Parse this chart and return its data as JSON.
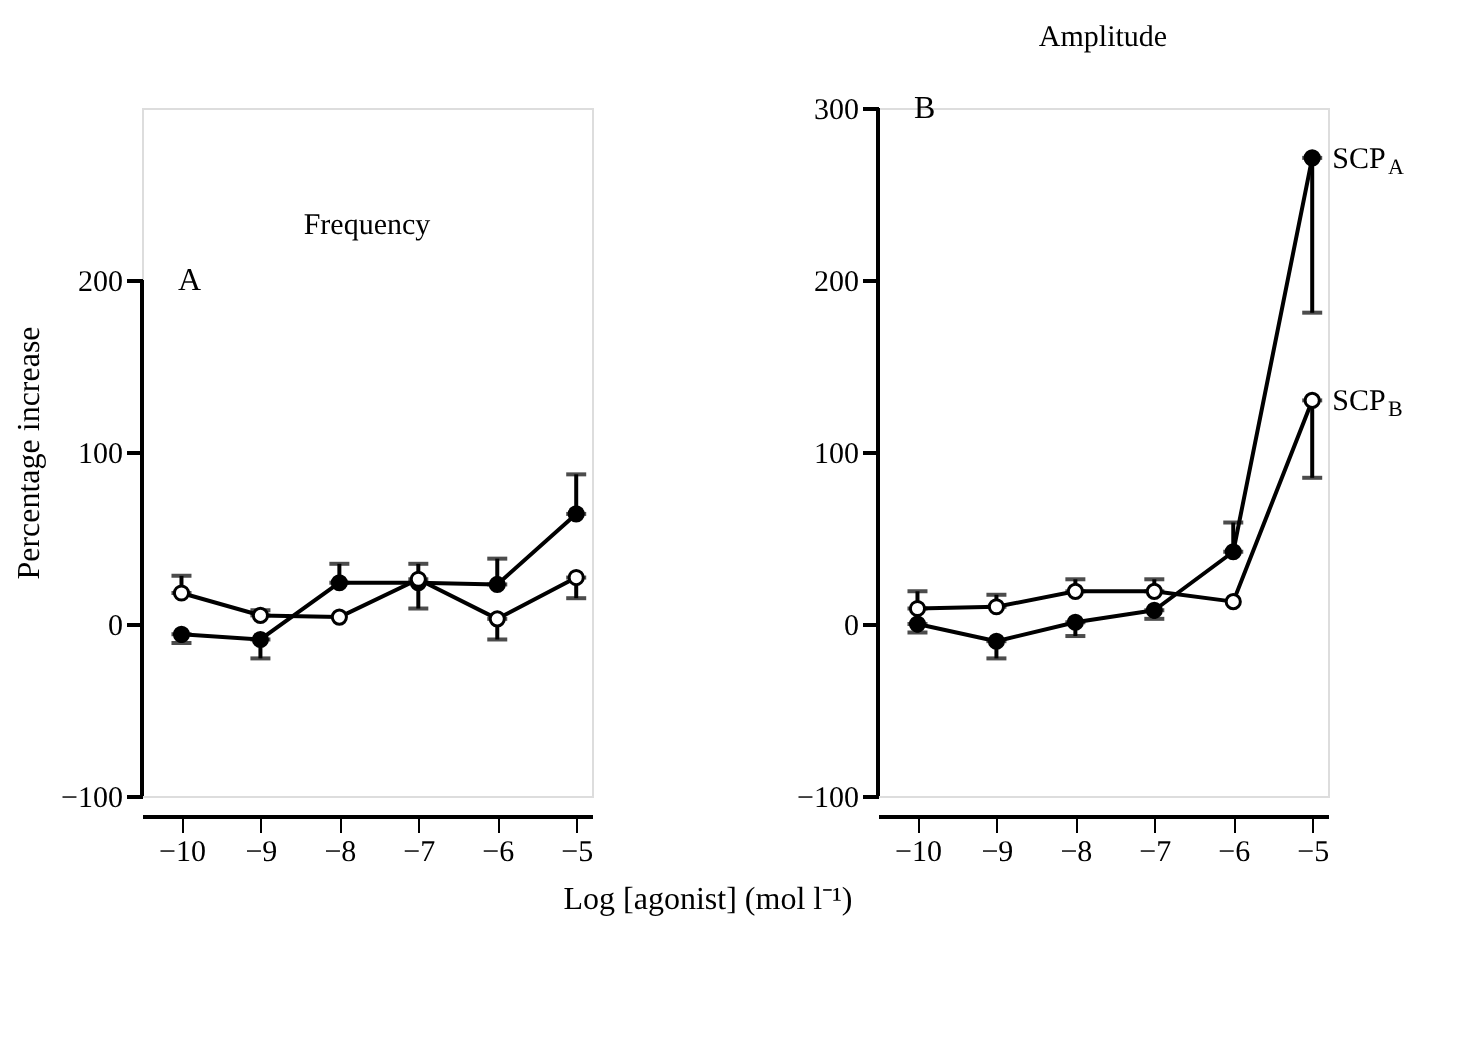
{
  "chart_data": [
    {
      "type": "line",
      "title": "Frequency",
      "ylabel": "Percentage increase",
      "xlabel": "Log [agonist] (mol l⁻¹)",
      "annotations": [
        "A"
      ],
      "x": [
        -10,
        -9,
        -8,
        -7,
        -6,
        -5
      ],
      "xlim": [
        -10.5,
        -4.8
      ],
      "xticks": [
        -10,
        -9,
        -8,
        -7,
        -6,
        -5
      ],
      "ylim": [
        -100,
        200
      ],
      "yticks": [
        -100,
        0,
        100,
        200
      ],
      "marker": "circle",
      "grid": false,
      "legend": false,
      "series": [
        {
          "color": "#000000",
          "values": [
            -6,
            -9,
            24,
            24,
            23,
            64
          ],
          "errors": [
            [
              -11,
              -6
            ],
            [
              -20,
              -9
            ],
            [
              24,
              35
            ],
            [
              24,
              35
            ],
            [
              23,
              38
            ],
            [
              64,
              87
            ]
          ]
        },
        {
          "color": "#000000",
          "values": [
            18,
            5,
            4,
            26,
            3,
            27
          ],
          "errors": [
            [
              18,
              28
            ],
            [
              5,
              8
            ],
            null,
            [
              9,
              26
            ],
            [
              -9,
              3
            ],
            [
              15,
              27
            ]
          ]
        }
      ]
    },
    {
      "type": "line",
      "title": "Amplitude",
      "annotations": [
        "B"
      ],
      "x": [
        -10,
        -9,
        -8,
        -7,
        -6,
        -5
      ],
      "xlim": [
        -10.5,
        -4.8
      ],
      "xticks": [
        -10,
        -9,
        -8,
        -7,
        -6,
        -5
      ],
      "ylim": [
        -100,
        300
      ],
      "yticks": [
        -100,
        0,
        100,
        200,
        300
      ],
      "marker": "circle",
      "grid": false,
      "legend": false,
      "series": [
        {
          "name": "SCP$_{A}$",
          "color": "#000000",
          "values": [
            0,
            -10,
            1,
            8,
            42,
            271
          ],
          "errors": [
            [
              -5,
              0
            ],
            [
              -20,
              -10
            ],
            [
              -7,
              1
            ],
            [
              3,
              8
            ],
            [
              42,
              59
            ],
            [
              181,
              271
            ]
          ]
        },
        {
          "name": "SCP$_{B}$",
          "color": "#000000",
          "values": [
            9,
            10,
            19,
            19,
            13,
            130
          ],
          "errors": [
            [
              9,
              19
            ],
            [
              10,
              17
            ],
            [
              19,
              26
            ],
            [
              19,
              26
            ],
            null,
            [
              85,
              130
            ]
          ]
        }
      ]
    }
  ]
}
